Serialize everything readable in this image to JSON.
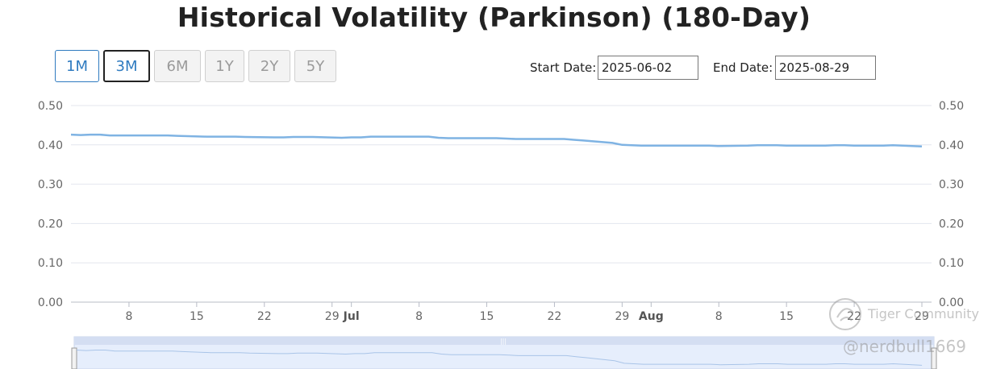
{
  "header": {
    "title": "Historical Volatility (Parkinson) (180-Day)"
  },
  "range_buttons": [
    {
      "label": "1M",
      "state": "active"
    },
    {
      "label": "3M",
      "state": "selected"
    },
    {
      "label": "6M",
      "state": "disabled"
    },
    {
      "label": "1Y",
      "state": "disabled"
    },
    {
      "label": "2Y",
      "state": "disabled"
    },
    {
      "label": "5Y",
      "state": "disabled"
    }
  ],
  "dates": {
    "start_label": "Start Date:",
    "start_value": "2025-06-02",
    "end_label": "End Date:",
    "end_value": "2025-08-29"
  },
  "colors": {
    "line": "#7fb3e3",
    "grid": "#e3e6ee",
    "navigator_fill": "#e6eefc",
    "accent": "#2f7bc0"
  },
  "chart_data": {
    "type": "line",
    "title": "Historical Volatility (Parkinson) (180-Day)",
    "xlabel": "",
    "ylabel": "",
    "ylim": [
      0,
      0.5
    ],
    "yticks": [
      "0.00",
      "0.10",
      "0.20",
      "0.30",
      "0.40",
      "0.50"
    ],
    "grid": true,
    "dual_axis_labels": true,
    "xticks": [
      {
        "date": "2025-06-08",
        "label": "8",
        "bold": false
      },
      {
        "date": "2025-06-15",
        "label": "15",
        "bold": false
      },
      {
        "date": "2025-06-22",
        "label": "22",
        "bold": false
      },
      {
        "date": "2025-06-29",
        "label": "29",
        "bold": false
      },
      {
        "date": "2025-07-01",
        "label": "Jul",
        "bold": true
      },
      {
        "date": "2025-07-08",
        "label": "8",
        "bold": false
      },
      {
        "date": "2025-07-15",
        "label": "15",
        "bold": false
      },
      {
        "date": "2025-07-22",
        "label": "22",
        "bold": false
      },
      {
        "date": "2025-07-29",
        "label": "29",
        "bold": false
      },
      {
        "date": "2025-08-01",
        "label": "Aug",
        "bold": true
      },
      {
        "date": "2025-08-08",
        "label": "8",
        "bold": false
      },
      {
        "date": "2025-08-15",
        "label": "15",
        "bold": false
      },
      {
        "date": "2025-08-22",
        "label": "22",
        "bold": false
      },
      {
        "date": "2025-08-29",
        "label": "29",
        "bold": false
      }
    ],
    "x_start": "2025-06-02",
    "x_end": "2025-08-30",
    "series": [
      {
        "points": [
          [
            "2025-06-02",
            0.426
          ],
          [
            "2025-06-03",
            0.425
          ],
          [
            "2025-06-04",
            0.426
          ],
          [
            "2025-06-05",
            0.426
          ],
          [
            "2025-06-06",
            0.424
          ],
          [
            "2025-06-09",
            0.424
          ],
          [
            "2025-06-10",
            0.424
          ],
          [
            "2025-06-11",
            0.424
          ],
          [
            "2025-06-12",
            0.424
          ],
          [
            "2025-06-13",
            0.423
          ],
          [
            "2025-06-16",
            0.421
          ],
          [
            "2025-06-17",
            0.421
          ],
          [
            "2025-06-18",
            0.421
          ],
          [
            "2025-06-19",
            0.421
          ],
          [
            "2025-06-20",
            0.42
          ],
          [
            "2025-06-23",
            0.419
          ],
          [
            "2025-06-24",
            0.419
          ],
          [
            "2025-06-25",
            0.42
          ],
          [
            "2025-06-26",
            0.42
          ],
          [
            "2025-06-27",
            0.42
          ],
          [
            "2025-06-30",
            0.418
          ],
          [
            "2025-07-01",
            0.419
          ],
          [
            "2025-07-02",
            0.419
          ],
          [
            "2025-07-03",
            0.421
          ],
          [
            "2025-07-07",
            0.421
          ],
          [
            "2025-07-08",
            0.421
          ],
          [
            "2025-07-09",
            0.421
          ],
          [
            "2025-07-10",
            0.418
          ],
          [
            "2025-07-11",
            0.417
          ],
          [
            "2025-07-14",
            0.417
          ],
          [
            "2025-07-15",
            0.417
          ],
          [
            "2025-07-16",
            0.417
          ],
          [
            "2025-07-17",
            0.416
          ],
          [
            "2025-07-18",
            0.415
          ],
          [
            "2025-07-21",
            0.415
          ],
          [
            "2025-07-22",
            0.415
          ],
          [
            "2025-07-23",
            0.415
          ],
          [
            "2025-07-24",
            0.413
          ],
          [
            "2025-07-25",
            0.411
          ],
          [
            "2025-07-28",
            0.405
          ],
          [
            "2025-07-29",
            0.4
          ],
          [
            "2025-07-30",
            0.399
          ],
          [
            "2025-07-31",
            0.398
          ],
          [
            "2025-08-01",
            0.398
          ],
          [
            "2025-08-04",
            0.398
          ],
          [
            "2025-08-05",
            0.398
          ],
          [
            "2025-08-06",
            0.398
          ],
          [
            "2025-08-07",
            0.398
          ],
          [
            "2025-08-08",
            0.397
          ],
          [
            "2025-08-11",
            0.398
          ],
          [
            "2025-08-12",
            0.399
          ],
          [
            "2025-08-13",
            0.399
          ],
          [
            "2025-08-14",
            0.399
          ],
          [
            "2025-08-15",
            0.398
          ],
          [
            "2025-08-18",
            0.398
          ],
          [
            "2025-08-19",
            0.398
          ],
          [
            "2025-08-20",
            0.399
          ],
          [
            "2025-08-21",
            0.399
          ],
          [
            "2025-08-22",
            0.398
          ],
          [
            "2025-08-25",
            0.398
          ],
          [
            "2025-08-26",
            0.399
          ],
          [
            "2025-08-27",
            0.398
          ],
          [
            "2025-08-28",
            0.397
          ],
          [
            "2025-08-29",
            0.396
          ]
        ]
      }
    ]
  },
  "watermark": {
    "brand": "Tiger Community",
    "user": "@nerdbull1669"
  }
}
